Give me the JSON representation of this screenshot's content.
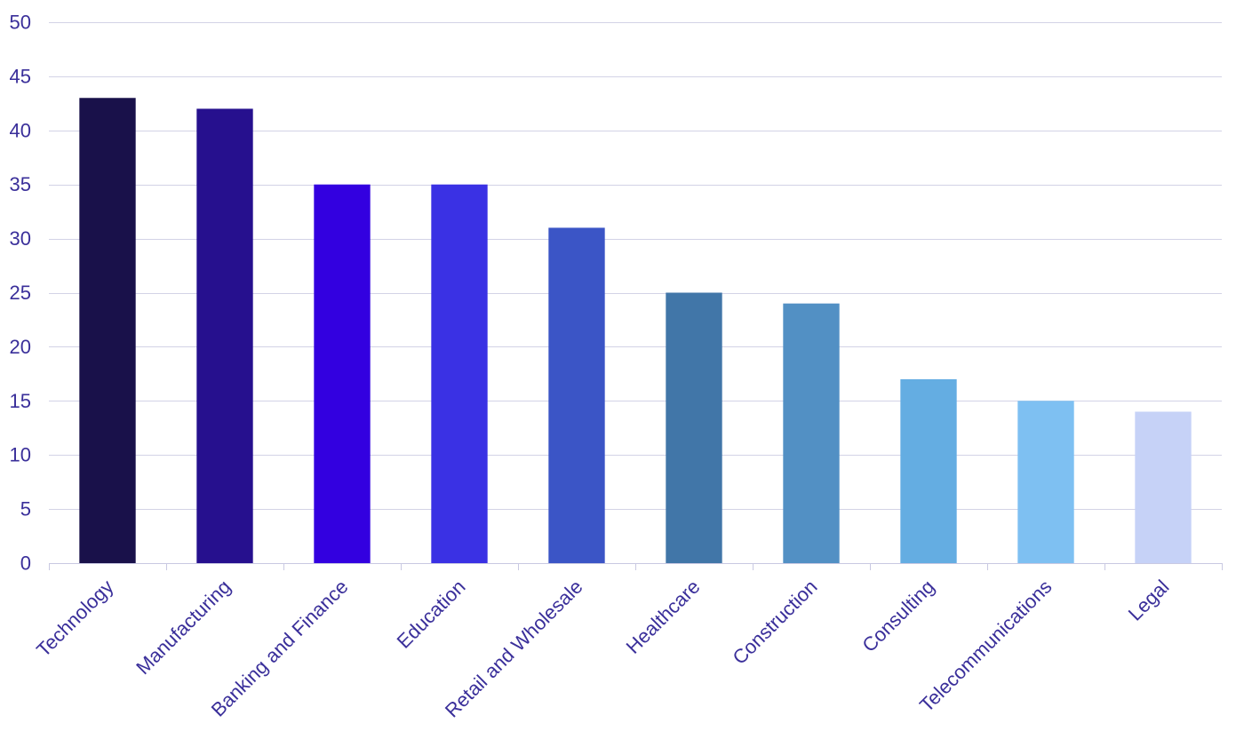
{
  "chart_data": {
    "type": "bar",
    "title": "",
    "xlabel": "",
    "ylabel": "",
    "ylim": [
      0,
      50
    ],
    "y_ticks": [
      0,
      5,
      10,
      15,
      20,
      25,
      30,
      35,
      40,
      45,
      50
    ],
    "grid": true,
    "categories": [
      "Technology",
      "Manufacturing",
      "Banking and Finance",
      "Education",
      "Retail and Wholesale",
      "Healthcare",
      "Construction",
      "Consulting",
      "Telecommunications",
      "Legal"
    ],
    "values": [
      43,
      42,
      35,
      35,
      31,
      25,
      24,
      17,
      15,
      14
    ],
    "bar_colors": [
      "#19114a",
      "#26108e",
      "#3300e0",
      "#3a31e4",
      "#3b55c6",
      "#4176a8",
      "#5290c4",
      "#64ade2",
      "#7ec0f2",
      "#c6d2f7"
    ],
    "colors": {
      "label_text": "#3a2f9a",
      "grid": "#d3d3e6",
      "axis": "#c9c9e2"
    }
  }
}
